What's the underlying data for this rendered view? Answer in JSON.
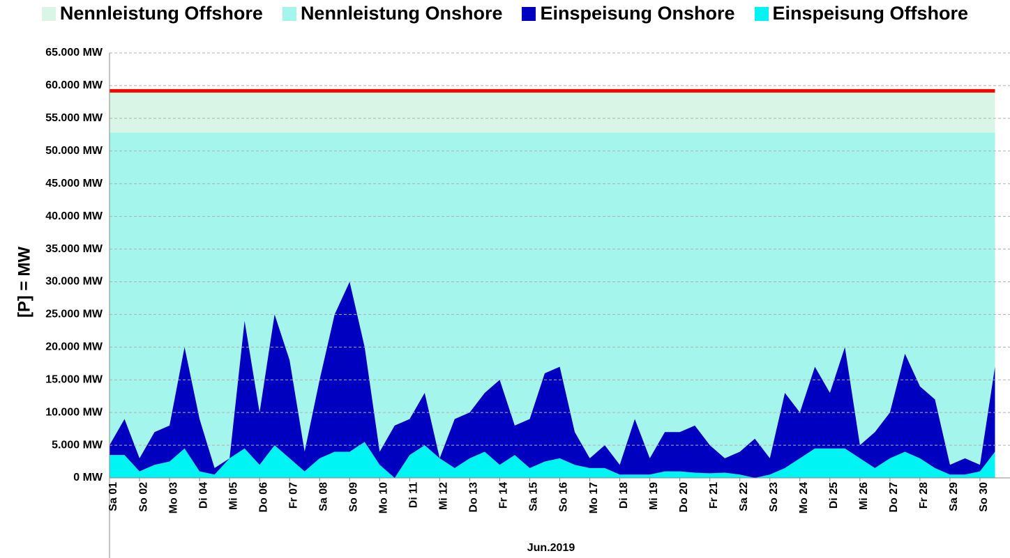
{
  "chart_data": {
    "type": "area",
    "x_title": "Jun.2019",
    "y_title": "[P] = MW",
    "x": [
      0,
      0.5,
      1,
      1.5,
      2,
      2.5,
      3,
      3.5,
      4,
      4.5,
      5,
      5.5,
      6,
      6.5,
      7,
      7.5,
      8,
      8.5,
      9,
      9.5,
      10,
      10.5,
      11,
      11.5,
      12,
      12.5,
      13,
      13.5,
      14,
      14.5,
      15,
      15.5,
      16,
      16.5,
      17,
      17.5,
      18,
      18.5,
      19,
      19.5,
      20,
      20.5,
      21,
      21.5,
      22,
      22.5,
      23,
      23.5,
      24,
      24.5,
      25,
      25.5,
      26,
      26.5,
      27,
      27.5,
      28,
      28.5,
      29,
      29.5
    ],
    "xlim": [
      0,
      30
    ],
    "xticks": [
      {
        "value": 0,
        "label": "Sa 01"
      },
      {
        "value": 1,
        "label": "So 02"
      },
      {
        "value": 2,
        "label": "Mo 03"
      },
      {
        "value": 3,
        "label": "Di 04"
      },
      {
        "value": 4,
        "label": "Mi 05"
      },
      {
        "value": 5,
        "label": "Do 06"
      },
      {
        "value": 6,
        "label": "Fr 07"
      },
      {
        "value": 7,
        "label": "Sa 08"
      },
      {
        "value": 8,
        "label": "So 09"
      },
      {
        "value": 9,
        "label": "Mo 10"
      },
      {
        "value": 10,
        "label": "Di 11"
      },
      {
        "value": 11,
        "label": "Mi 12"
      },
      {
        "value": 12,
        "label": "Do 13"
      },
      {
        "value": 13,
        "label": "Fr 14"
      },
      {
        "value": 14,
        "label": "Sa 15"
      },
      {
        "value": 15,
        "label": "So 16"
      },
      {
        "value": 16,
        "label": "Mo 17"
      },
      {
        "value": 17,
        "label": "Di 18"
      },
      {
        "value": 18,
        "label": "Mi 19"
      },
      {
        "value": 19,
        "label": "Do 20"
      },
      {
        "value": 20,
        "label": "Fr 21"
      },
      {
        "value": 21,
        "label": "Sa 22"
      },
      {
        "value": 22,
        "label": "So 23"
      },
      {
        "value": 23,
        "label": "Mo 24"
      },
      {
        "value": 24,
        "label": "Di 25"
      },
      {
        "value": 25,
        "label": "Mi 26"
      },
      {
        "value": 26,
        "label": "Do 27"
      },
      {
        "value": 27,
        "label": "Fr 28"
      },
      {
        "value": 28,
        "label": "Sa 29"
      },
      {
        "value": 29,
        "label": "So 30"
      }
    ],
    "ylim": [
      0,
      65000
    ],
    "yticks": [
      {
        "value": 0,
        "label": "0 MW"
      },
      {
        "value": 5000,
        "label": "5.000 MW"
      },
      {
        "value": 10000,
        "label": "10.000 MW"
      },
      {
        "value": 15000,
        "label": "15.000 MW"
      },
      {
        "value": 20000,
        "label": "20.000 MW"
      },
      {
        "value": 25000,
        "label": "25.000 MW"
      },
      {
        "value": 30000,
        "label": "30.000 MW"
      },
      {
        "value": 35000,
        "label": "35.000 MW"
      },
      {
        "value": 40000,
        "label": "40.000 MW"
      },
      {
        "value": 45000,
        "label": "45.000 MW"
      },
      {
        "value": 50000,
        "label": "50.000 MW"
      },
      {
        "value": 55000,
        "label": "55.000 MW"
      },
      {
        "value": 60000,
        "label": "60.000 MW"
      },
      {
        "value": 65000,
        "label": "65.000 MW"
      }
    ],
    "grid": true,
    "top_line_color": "#ff0000",
    "series": [
      {
        "name": "Nennleistung Offshore",
        "color": "#d8f5e6",
        "values": [
          6400,
          6400,
          6400,
          6400,
          6400,
          6400,
          6400,
          6400,
          6400,
          6400,
          6400,
          6400,
          6400,
          6400,
          6400,
          6400,
          6400,
          6400,
          6400,
          6400,
          6400,
          6400,
          6400,
          6400,
          6400,
          6400,
          6400,
          6400,
          6400,
          6400,
          6400,
          6400,
          6400,
          6400,
          6400,
          6400,
          6400,
          6400,
          6400,
          6400,
          6400,
          6400,
          6400,
          6400,
          6400,
          6400,
          6400,
          6400,
          6400,
          6400,
          6400,
          6400,
          6400,
          6400,
          6400,
          6400,
          6400,
          6400,
          6400,
          6400
        ]
      },
      {
        "name": "Nennleistung Onshore",
        "color": "#a4f6ec",
        "values": [
          52800,
          52800,
          52800,
          52800,
          52800,
          52800,
          52800,
          52800,
          52800,
          52800,
          52800,
          52800,
          52800,
          52800,
          52800,
          52800,
          52800,
          52800,
          52800,
          52800,
          52800,
          52800,
          52800,
          52800,
          52800,
          52800,
          52800,
          52800,
          52800,
          52800,
          52800,
          52800,
          52800,
          52800,
          52800,
          52800,
          52800,
          52800,
          52800,
          52800,
          52800,
          52800,
          52800,
          52800,
          52800,
          52800,
          52800,
          52800,
          52800,
          52800,
          52800,
          52800,
          52800,
          52800,
          52800,
          52800,
          52800,
          52800,
          52800,
          52800
        ]
      },
      {
        "name": "Einspeisung Onshore",
        "color": "#0000c0",
        "values": [
          1500,
          5500,
          2000,
          5000,
          5500,
          15500,
          8000,
          1000,
          0,
          19500,
          8000,
          20000,
          15000,
          3000,
          12000,
          21000,
          26000,
          14500,
          2000,
          8000,
          5500,
          8000,
          0,
          7500,
          7000,
          9000,
          13000,
          4500,
          7500,
          13500,
          14000,
          5000,
          1500,
          3500,
          1500,
          8500,
          2500,
          6000,
          6000,
          7200,
          4300,
          2200,
          3500,
          6000,
          2500,
          11500,
          7000,
          12500,
          8500,
          15500,
          2000,
          5500,
          7000,
          15000,
          11000,
          10500,
          1500,
          2500,
          1000,
          13000
        ]
      },
      {
        "name": "Einspeisung Offshore",
        "color": "#00f4f4",
        "values": [
          3500,
          3500,
          1000,
          2000,
          2500,
          4500,
          1000,
          500,
          3000,
          4500,
          2000,
          5000,
          3000,
          1000,
          3000,
          4000,
          4000,
          5500,
          2000,
          0,
          3500,
          5000,
          3000,
          1500,
          3000,
          4000,
          2000,
          3500,
          1500,
          2500,
          3000,
          2000,
          1500,
          1500,
          500,
          500,
          500,
          1000,
          1000,
          800,
          700,
          800,
          500,
          0,
          500,
          1500,
          3000,
          4500,
          4500,
          4500,
          3000,
          1500,
          3000,
          4000,
          3000,
          1500,
          500,
          500,
          1000,
          4000
        ]
      }
    ]
  }
}
